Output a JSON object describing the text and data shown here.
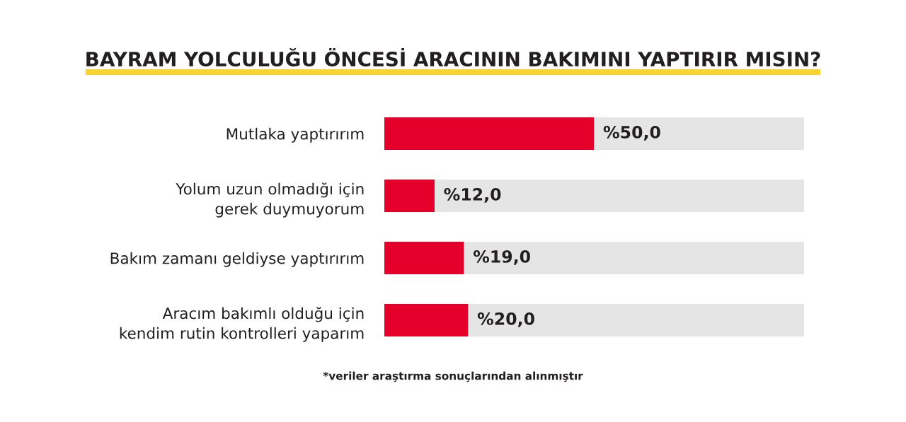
{
  "chart_data": {
    "type": "bar",
    "orientation": "horizontal",
    "stacked": true,
    "title": "BAYRAM YOLCULUĞU ÖNCESİ ARACININ BAKIMINI YAPTIRIR MISIN?",
    "categories": [
      "Mutlaka yaptırırım",
      "Yolum uzun olmadığı için\ngerek duymuyorum",
      "Bakım zamanı geldiyse yaptırırım",
      "Aracım bakımlı olduğu için\nkendim rutin kontrolleri yaparım"
    ],
    "series": [
      {
        "color": "#e4002b",
        "values": [
          50,
          12,
          19,
          20
        ],
        "value_labels": [
          "%50,0",
          "%12,0",
          "%19,0",
          "%20,0"
        ]
      },
      {
        "color": "#e5e5e5",
        "values": [
          50,
          88,
          81,
          80
        ]
      }
    ],
    "xlim": [
      0,
      100
    ],
    "tick_labels": "y",
    "grid": false,
    "annotations": [
      "*veriler araştırma sonuçlarından alınmıştır"
    ]
  }
}
